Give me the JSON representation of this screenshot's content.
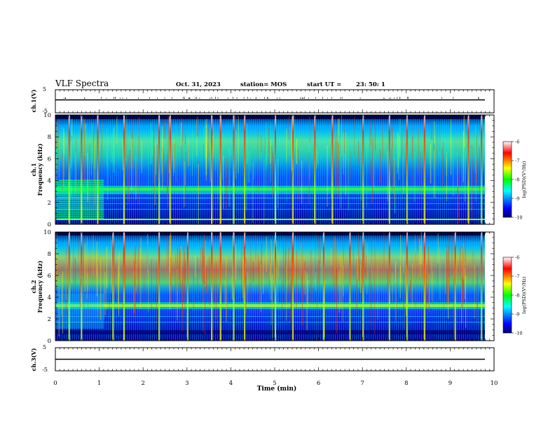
{
  "header": {
    "title": "VLF Spectra",
    "date": "Oct. 31, 2023",
    "station": "station= MOS",
    "start_label": "start  UT  =",
    "start_time": "23: 50: 1"
  },
  "chart_data": [
    {
      "type": "line",
      "name": "ch1-waveform",
      "ylabel": "ch.1(V)",
      "ylim": [
        -5,
        5
      ],
      "ytick_labels": [
        "5",
        "-5"
      ],
      "xlim": [
        0,
        10
      ],
      "baseline_value": 0
    },
    {
      "type": "heatmap",
      "name": "ch1-spectrogram",
      "ylabel_top": "ch.1",
      "ylabel": "Frequency (kHz)",
      "xlim": [
        0,
        10
      ],
      "ylim": [
        0,
        10
      ],
      "ytick_labels": [
        "0",
        "2",
        "4",
        "6",
        "8",
        "10"
      ],
      "data_end_min": 9.8,
      "regime_change_min": 1.1,
      "sferic_times_min": [
        0.3,
        0.58,
        0.95,
        1.55,
        2.35,
        2.6,
        3.55,
        3.75,
        4.05,
        4.3,
        5.0,
        5.4,
        5.9,
        6.3,
        7.0,
        7.6,
        8.0,
        8.4,
        9.4,
        9.7
      ],
      "colorbar": {
        "label": "log(PSD)(V²/Hz)",
        "min": -10,
        "max": -6,
        "tick_labels": [
          "-6",
          "-7",
          "-8",
          "-9",
          "-10"
        ]
      }
    },
    {
      "type": "heatmap",
      "name": "ch2-spectrogram",
      "ylabel_top": "ch.2",
      "ylabel": "Frequency (kHz)",
      "xlim": [
        0,
        10
      ],
      "ylim": [
        0,
        10
      ],
      "ytick_labels": [
        "0",
        "2",
        "4",
        "6",
        "8",
        "10"
      ],
      "data_end_min": 9.8,
      "regime_change_min": 1.1,
      "sferic_times_min": [
        0.3,
        0.58,
        1.3,
        1.55,
        2.35,
        3.0,
        3.55,
        3.75,
        4.05,
        4.3,
        5.0,
        5.4,
        6.1,
        6.7,
        7.0,
        7.6,
        8.0,
        8.4,
        9.1,
        9.7
      ],
      "colorbar": {
        "label": "log(PSD)(V²/Hz)",
        "min": -10,
        "max": -6,
        "tick_labels": [
          "-6",
          "-7",
          "-8",
          "-9",
          "-10"
        ]
      }
    },
    {
      "type": "line",
      "name": "ch3-waveform",
      "ylabel": "ch.3(V)",
      "ylim": [
        -5,
        5
      ],
      "ytick_labels": [
        "5",
        "-5"
      ],
      "xlim": [
        0,
        10
      ],
      "baseline_value": 0
    }
  ],
  "xaxis": {
    "label": "Time (min)",
    "tick_labels": [
      "0",
      "1",
      "2",
      "3",
      "4",
      "5",
      "6",
      "7",
      "8",
      "9",
      "10"
    ]
  },
  "colors": {
    "jet": [
      "#00007f",
      "#0000ff",
      "#00ffff",
      "#00ff00",
      "#ffff00",
      "#ff0000",
      "#ffffff"
    ]
  }
}
